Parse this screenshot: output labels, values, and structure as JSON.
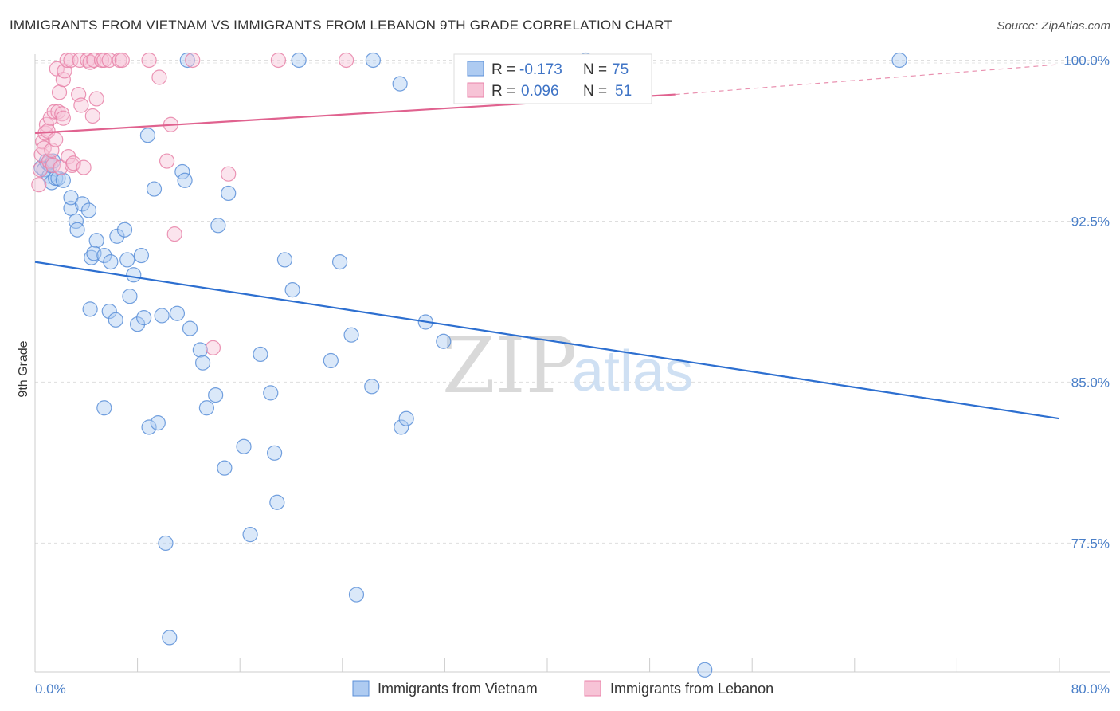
{
  "title": "IMMIGRANTS FROM VIETNAM VS IMMIGRANTS FROM LEBANON 9TH GRADE CORRELATION CHART",
  "source": "Source: ZipAtlas.com",
  "colors": {
    "vietnam": "#5b8fd8",
    "vietnam_fill": "#aecbf1",
    "vietnam_line": "#2d6fd0",
    "lebanon": "#e882a8",
    "lebanon_fill": "#f7c3d6",
    "lebanon_line": "#e0628f",
    "value_text": "#3f74c6"
  },
  "legend": {
    "r_label": "R = ",
    "n_label": "N = ",
    "rows": [
      {
        "series": "vietnam",
        "r": "-0.173",
        "n": "75"
      },
      {
        "series": "lebanon",
        "r": "0.096",
        "n": "51"
      }
    ]
  },
  "watermark": {
    "zip": "ZIP",
    "atlas": "atlas"
  },
  "chart_data": {
    "type": "scatter",
    "xlabel": "",
    "ylabel": "9th Grade",
    "xlim": [
      0,
      80
    ],
    "ylim": [
      71.5,
      100.5
    ],
    "x_tick_labels": [
      "0.0%",
      "80.0%"
    ],
    "x_minor_ticks": [
      0,
      8,
      16,
      24,
      32,
      40,
      48,
      56,
      64,
      72,
      80
    ],
    "y_ticks": [
      77.5,
      85.0,
      92.5,
      100.0
    ],
    "y_tick_labels": [
      "77.5%",
      "85.0%",
      "92.5%",
      "100.0%"
    ],
    "grid": true,
    "series": [
      {
        "name": "Immigrants from Vietnam",
        "key": "vietnam",
        "trend": {
          "x0": 0.0,
          "y0": 90.6,
          "x1": 80.0,
          "y1": 83.3
        },
        "points": [
          [
            0.5,
            95.0
          ],
          [
            0.7,
            94.9
          ],
          [
            0.9,
            95.3
          ],
          [
            1.0,
            95.2
          ],
          [
            1.1,
            94.6
          ],
          [
            1.2,
            95.1
          ],
          [
            1.3,
            94.3
          ],
          [
            1.4,
            95.3
          ],
          [
            1.6,
            94.5
          ],
          [
            1.8,
            94.5
          ],
          [
            2.2,
            94.4
          ],
          [
            2.8,
            93.1
          ],
          [
            2.8,
            93.6
          ],
          [
            3.2,
            92.5
          ],
          [
            3.3,
            92.1
          ],
          [
            3.7,
            93.3
          ],
          [
            4.2,
            93.0
          ],
          [
            4.8,
            91.6
          ],
          [
            4.3,
            88.4
          ],
          [
            4.4,
            90.8
          ],
          [
            4.6,
            91.0
          ],
          [
            5.4,
            90.9
          ],
          [
            5.8,
            88.3
          ],
          [
            5.9,
            90.6
          ],
          [
            6.3,
            87.9
          ],
          [
            6.4,
            91.8
          ],
          [
            7.0,
            92.1
          ],
          [
            7.2,
            90.7
          ],
          [
            7.4,
            89.0
          ],
          [
            7.7,
            90.0
          ],
          [
            8.0,
            87.7
          ],
          [
            8.3,
            90.9
          ],
          [
            8.5,
            88.0
          ],
          [
            8.8,
            96.5
          ],
          [
            9.3,
            94.0
          ],
          [
            9.9,
            88.1
          ],
          [
            10.2,
            77.5
          ],
          [
            10.5,
            73.1
          ],
          [
            11.1,
            88.2
          ],
          [
            11.5,
            94.8
          ],
          [
            11.7,
            94.4
          ],
          [
            11.9,
            100.0
          ],
          [
            12.1,
            87.5
          ],
          [
            12.9,
            86.5
          ],
          [
            13.1,
            85.9
          ],
          [
            13.4,
            83.8
          ],
          [
            14.1,
            84.4
          ],
          [
            14.3,
            92.3
          ],
          [
            14.8,
            81.0
          ],
          [
            15.1,
            93.8
          ],
          [
            16.3,
            82.0
          ],
          [
            16.8,
            77.9
          ],
          [
            17.6,
            86.3
          ],
          [
            18.4,
            84.5
          ],
          [
            18.7,
            81.7
          ],
          [
            18.9,
            79.4
          ],
          [
            19.5,
            90.7
          ],
          [
            20.1,
            89.3
          ],
          [
            20.6,
            100.0
          ],
          [
            23.1,
            86.0
          ],
          [
            23.8,
            90.6
          ],
          [
            24.7,
            87.2
          ],
          [
            25.1,
            75.1
          ],
          [
            26.3,
            84.8
          ],
          [
            26.4,
            100.0
          ],
          [
            28.5,
            98.9
          ],
          [
            28.6,
            82.9
          ],
          [
            29.0,
            83.3
          ],
          [
            30.5,
            87.8
          ],
          [
            31.9,
            86.9
          ],
          [
            43.0,
            100.0
          ],
          [
            67.5,
            100.0
          ],
          [
            8.9,
            82.9
          ],
          [
            9.6,
            83.1
          ],
          [
            52.3,
            71.6
          ],
          [
            5.4,
            83.8
          ]
        ]
      },
      {
        "name": "Immigrants from Lebanon",
        "key": "lebanon",
        "trend": {
          "x0": 0.0,
          "y0": 96.6,
          "x1": 50.0,
          "y1": 98.4,
          "dash_x1": 80.0,
          "dash_y1": 99.8
        },
        "points": [
          [
            0.3,
            94.2
          ],
          [
            0.4,
            94.9
          ],
          [
            0.5,
            95.6
          ],
          [
            0.6,
            96.2
          ],
          [
            0.7,
            95.9
          ],
          [
            0.8,
            96.6
          ],
          [
            0.9,
            97.0
          ],
          [
            1.0,
            96.7
          ],
          [
            1.1,
            95.3
          ],
          [
            1.2,
            97.3
          ],
          [
            1.3,
            95.8
          ],
          [
            1.4,
            95.1
          ],
          [
            1.5,
            97.6
          ],
          [
            1.6,
            96.3
          ],
          [
            1.7,
            99.6
          ],
          [
            1.8,
            97.6
          ],
          [
            1.9,
            98.5
          ],
          [
            2.0,
            95.0
          ],
          [
            2.1,
            97.5
          ],
          [
            2.2,
            97.3
          ],
          [
            2.2,
            99.1
          ],
          [
            2.3,
            99.5
          ],
          [
            2.5,
            100.0
          ],
          [
            2.6,
            95.5
          ],
          [
            2.8,
            100.0
          ],
          [
            2.9,
            95.1
          ],
          [
            3.0,
            95.2
          ],
          [
            3.4,
            98.4
          ],
          [
            3.5,
            100.0
          ],
          [
            3.6,
            97.9
          ],
          [
            3.8,
            95.0
          ],
          [
            4.1,
            100.0
          ],
          [
            4.3,
            99.9
          ],
          [
            4.5,
            97.4
          ],
          [
            4.6,
            100.0
          ],
          [
            4.8,
            98.2
          ],
          [
            5.2,
            100.0
          ],
          [
            5.4,
            100.0
          ],
          [
            5.8,
            100.0
          ],
          [
            6.6,
            100.0
          ],
          [
            6.8,
            100.0
          ],
          [
            8.9,
            100.0
          ],
          [
            9.7,
            99.2
          ],
          [
            10.3,
            95.3
          ],
          [
            10.6,
            97.0
          ],
          [
            10.9,
            91.9
          ],
          [
            12.3,
            100.0
          ],
          [
            13.9,
            86.6
          ],
          [
            15.1,
            94.7
          ],
          [
            19.0,
            100.0
          ],
          [
            24.3,
            100.0
          ]
        ]
      }
    ]
  },
  "bottom_legend": [
    {
      "series": "vietnam",
      "label": "Immigrants from Vietnam"
    },
    {
      "series": "lebanon",
      "label": "Immigrants from Lebanon"
    }
  ]
}
